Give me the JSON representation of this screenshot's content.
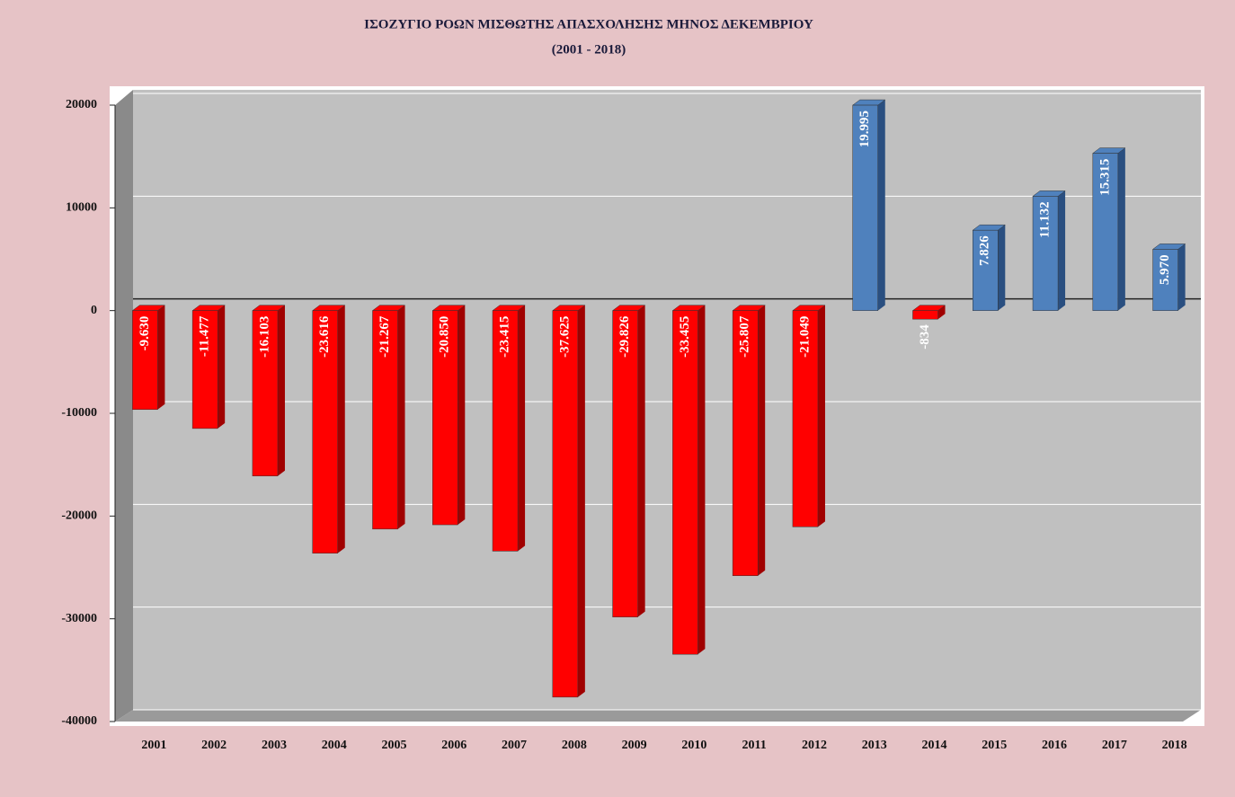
{
  "chart_data": {
    "type": "bar",
    "title": "ΙΣΟΖΥΓΙΟ ΡΟΩΝ ΜΙΣΘΩΤΗΣ ΑΠΑΣΧΟΛΗΣΗΣ ΜΗΝΟΣ ΔΕΚΕΜΒΡΙΟΥ",
    "subtitle": "(2001 - 2018)",
    "categories": [
      "2001",
      "2002",
      "2003",
      "2004",
      "2005",
      "2006",
      "2007",
      "2008",
      "2009",
      "2010",
      "2011",
      "2012",
      "2013",
      "2014",
      "2015",
      "2016",
      "2017",
      "2018"
    ],
    "values": [
      -9630,
      -11477,
      -16103,
      -23616,
      -21267,
      -20850,
      -23415,
      -37625,
      -29826,
      -33455,
      -25807,
      -21049,
      19995,
      -834,
      7826,
      11132,
      15315,
      5970
    ],
    "value_labels": [
      "-9.630",
      "-11.477",
      "-16.103",
      "-23.616",
      "-21.267",
      "-20.850",
      "-23.415",
      "-37.625",
      "-29.826",
      "-33.455",
      "-25.807",
      "-21.049",
      "19.995",
      "-834",
      "7.826",
      "11.132",
      "15.315",
      "5.970"
    ],
    "color_negative": "#ff0000",
    "color_positive": "#4f81bd",
    "ylim": [
      -40000,
      20000
    ],
    "yticks": [
      20000,
      10000,
      0,
      -10000,
      -20000,
      -30000,
      -40000
    ],
    "grid": true
  }
}
